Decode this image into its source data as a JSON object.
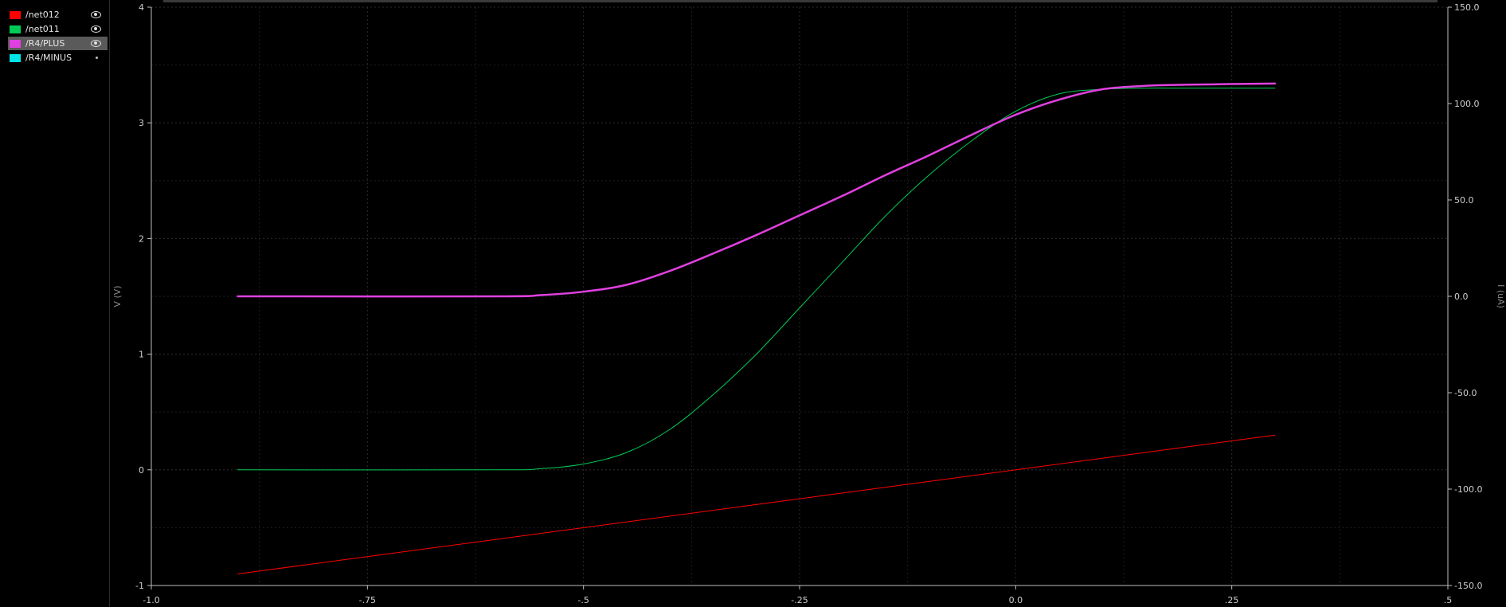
{
  "legend": {
    "items": [
      {
        "label": "/net012",
        "color": "#ff0000",
        "visibility_icon": "eye-icon",
        "selected": false
      },
      {
        "label": "/net011",
        "color": "#00cc55",
        "visibility_icon": "eye-icon",
        "selected": false
      },
      {
        "label": "/R4/PLUS",
        "color": "#e040e0",
        "visibility_icon": "eye-icon",
        "selected": true
      },
      {
        "label": "/R4/MINUS",
        "color": "#00e5e5",
        "visibility_icon": "dot-icon",
        "selected": false
      }
    ]
  },
  "chart_data": {
    "type": "line",
    "title": "",
    "xlabel": "",
    "ylabel_left": "V (V)",
    "ylabel_right": "I (uA)",
    "xlim": [
      -1.0,
      0.5
    ],
    "ylim_left": [
      -1,
      4
    ],
    "ylim_right": [
      -150.0,
      150.0
    ],
    "x_ticks": [
      "-1.0",
      "-.75",
      "-.5",
      "-.25",
      "0.0",
      ".25",
      ".5"
    ],
    "y_left_ticks": [
      "-1",
      "0",
      "1",
      "2",
      "3",
      "4"
    ],
    "y_right_ticks": [
      "-150.0",
      "-100.0",
      "-50.0",
      "0.0",
      "50.0",
      "100.0",
      "150.0"
    ],
    "grid": true,
    "series": [
      {
        "name": "/net012",
        "color": "#ff0000",
        "axis": "left",
        "width": 1,
        "x": [
          -0.9,
          0.3
        ],
        "y": [
          -0.9,
          0.3
        ]
      },
      {
        "name": "/net011",
        "color": "#00cc55",
        "axis": "left",
        "width": 1,
        "x": [
          -0.9,
          -0.6,
          -0.55,
          -0.5,
          -0.45,
          -0.4,
          -0.35,
          -0.3,
          -0.25,
          -0.2,
          -0.15,
          -0.1,
          -0.05,
          0.0,
          0.05,
          0.1,
          0.15,
          0.2,
          0.3
        ],
        "y": [
          0.0,
          0.0,
          0.01,
          0.05,
          0.15,
          0.35,
          0.65,
          1.0,
          1.4,
          1.8,
          2.2,
          2.55,
          2.85,
          3.1,
          3.25,
          3.29,
          3.3,
          3.3,
          3.3
        ]
      },
      {
        "name": "/R4/PLUS",
        "color": "#e040e0",
        "axis": "left",
        "width": 2.5,
        "x": [
          -0.9,
          -0.6,
          -0.55,
          -0.5,
          -0.45,
          -0.4,
          -0.35,
          -0.3,
          -0.25,
          -0.2,
          -0.15,
          -0.1,
          -0.05,
          0.0,
          0.05,
          0.1,
          0.15,
          0.2,
          0.3
        ],
        "y": [
          1.5,
          1.5,
          1.51,
          1.54,
          1.6,
          1.72,
          1.87,
          2.03,
          2.2,
          2.37,
          2.55,
          2.72,
          2.9,
          3.07,
          3.2,
          3.29,
          3.32,
          3.33,
          3.34
        ]
      }
    ]
  }
}
